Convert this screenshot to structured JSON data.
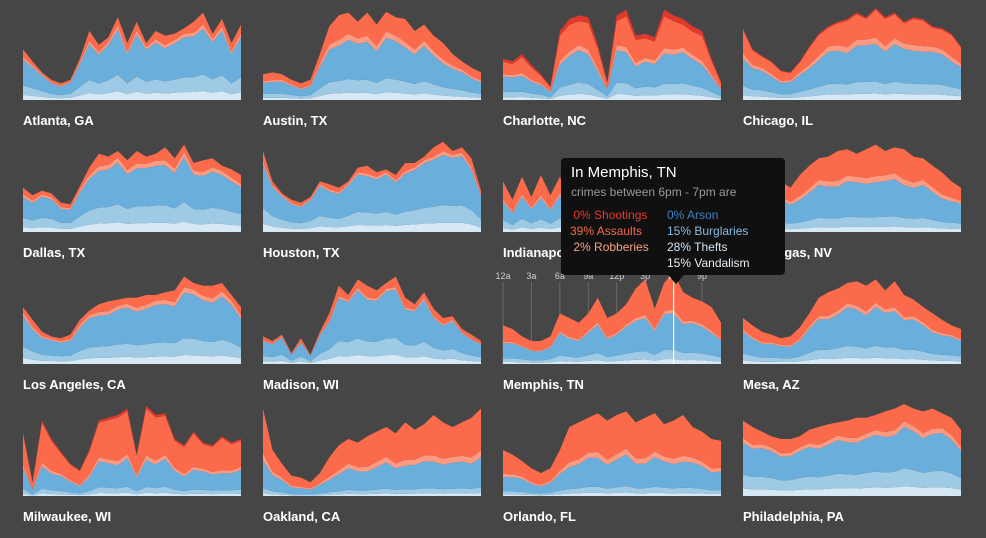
{
  "tooltip": {
    "title": "In Memphis, TN",
    "subtitle": "crimes between 6pm - 7pm are",
    "left_items": [
      {
        "pct": " 0%",
        "label": "Shootings",
        "color": "#e33b2e"
      },
      {
        "pct": "39%",
        "label": "Assaults",
        "color": "#f4694e"
      },
      {
        "pct": " 2%",
        "label": "Robberies",
        "color": "#f8a088"
      }
    ],
    "right_items": [
      {
        "pct": "0%",
        "label": "Arson",
        "color": "#3f82c4"
      },
      {
        "pct": "15%",
        "label": "Burglaries",
        "color": "#86bde2"
      },
      {
        "pct": "28%",
        "label": "Thefts",
        "color": "#cfe4f2"
      },
      {
        "pct": "15%",
        "label": "Vandalism",
        "color": "#e7f0f7"
      }
    ]
  },
  "colors": {
    "background": "#464646",
    "shootings": "#e0382b",
    "assaults": "#fb6a4a",
    "robberies": "#fc9a82",
    "arson": "#4a8cc9",
    "burglaries": "#6aaedb",
    "thefts": "#9fcae6",
    "vandalism": "#d6e8f4"
  },
  "chart_data": {
    "type": "area",
    "layout": "small-multiples",
    "x_unit": "hour of day",
    "x": [
      0,
      1,
      2,
      3,
      4,
      5,
      6,
      7,
      8,
      9,
      10,
      11,
      12,
      13,
      14,
      15,
      16,
      17,
      18,
      19,
      20,
      21,
      22,
      23
    ],
    "series_order": [
      "vandalism",
      "thefts",
      "burglaries",
      "arson",
      "robberies",
      "assaults",
      "shootings"
    ],
    "hour_axis": {
      "city": "Memphis, TN",
      "ticks": [
        {
          "hour": 0,
          "label": "12a"
        },
        {
          "hour": 3,
          "label": "3a"
        },
        {
          "hour": 6,
          "label": "6a"
        },
        {
          "hour": 9,
          "label": "9a"
        },
        {
          "hour": 12,
          "label": "12p"
        },
        {
          "hour": 15,
          "label": "3p"
        },
        {
          "hour": 18,
          "label": "6p"
        },
        {
          "hour": 21,
          "label": "9p"
        }
      ],
      "highlight_hour": 18
    },
    "cities": [
      {
        "name": "Atlanta, GA",
        "totals": [
          0.55,
          0.42,
          0.3,
          0.22,
          0.18,
          0.22,
          0.45,
          0.75,
          0.6,
          0.68,
          0.9,
          0.62,
          0.85,
          0.62,
          0.75,
          0.7,
          0.72,
          0.78,
          0.85,
          0.95,
          0.72,
          0.88,
          0.62,
          0.82
        ],
        "blue": 0.84,
        "light": 0.36,
        "robb": 0.05,
        "shoot": 0.0
      },
      {
        "name": "Austin, TX",
        "totals": [
          0.28,
          0.3,
          0.28,
          0.22,
          0.18,
          0.22,
          0.5,
          0.8,
          0.92,
          0.95,
          0.85,
          0.95,
          0.82,
          0.96,
          0.9,
          0.88,
          0.75,
          0.82,
          0.7,
          0.62,
          0.5,
          0.42,
          0.35,
          0.3
        ],
        "blue": 0.68,
        "light": 0.35,
        "robb": 0.07,
        "shoot": 0.0
      },
      {
        "name": "Charlotte, NC",
        "totals": [
          0.45,
          0.42,
          0.5,
          0.38,
          0.28,
          0.15,
          0.75,
          0.88,
          0.92,
          0.9,
          0.6,
          0.2,
          0.92,
          0.98,
          0.7,
          0.72,
          0.68,
          0.98,
          0.92,
          0.88,
          0.8,
          0.75,
          0.45,
          0.2
        ],
        "blue": 0.55,
        "light": 0.35,
        "robb": 0.06,
        "shoot": 0.07
      },
      {
        "name": "Chicago, IL",
        "totals": [
          0.78,
          0.55,
          0.48,
          0.42,
          0.32,
          0.3,
          0.42,
          0.58,
          0.72,
          0.8,
          0.85,
          0.88,
          0.95,
          0.9,
          1.0,
          0.9,
          0.95,
          0.85,
          0.9,
          0.88,
          0.8,
          0.78,
          0.72,
          0.58
        ],
        "blue": 0.62,
        "light": 0.33,
        "robb": 0.07,
        "shoot": 0.02
      },
      {
        "name": "Dallas, TX",
        "totals": [
          0.48,
          0.4,
          0.45,
          0.42,
          0.32,
          0.3,
          0.5,
          0.7,
          0.85,
          0.82,
          0.88,
          0.78,
          0.88,
          0.82,
          0.85,
          0.92,
          0.8,
          0.95,
          0.75,
          0.78,
          0.8,
          0.72,
          0.68,
          0.62
        ],
        "blue": 0.82,
        "light": 0.4,
        "robb": 0.06,
        "shoot": 0.0
      },
      {
        "name": "Houston, TX",
        "totals": [
          0.88,
          0.55,
          0.42,
          0.35,
          0.32,
          0.38,
          0.55,
          0.52,
          0.48,
          0.55,
          0.7,
          0.72,
          0.65,
          0.68,
          0.62,
          0.75,
          0.75,
          0.82,
          0.92,
          0.98,
          0.88,
          0.92,
          0.8,
          0.45
        ],
        "blue": 0.88,
        "light": 0.35,
        "robb": 0.04,
        "shoot": 0.0
      },
      {
        "name": "Indianapolis, IN",
        "totals": [
          0.55,
          0.35,
          0.6,
          0.38,
          0.62,
          0.4,
          0.6,
          0.38,
          0.62,
          0.4,
          0.58,
          0.45,
          0.7,
          0.48,
          0.62,
          0.5,
          0.65,
          0.55,
          0.62,
          0.58,
          0.52,
          0.48,
          0.42,
          0.38
        ],
        "blue": 0.62,
        "light": 0.38,
        "robb": 0.05,
        "shoot": 0.0
      },
      {
        "name": "Las Vegas, NV",
        "totals": [
          0.52,
          0.5,
          0.55,
          0.62,
          0.55,
          0.48,
          0.62,
          0.72,
          0.8,
          0.82,
          0.88,
          0.9,
          0.85,
          0.9,
          0.95,
          0.88,
          0.92,
          0.9,
          0.82,
          0.8,
          0.72,
          0.65,
          0.55,
          0.48
        ],
        "blue": 0.6,
        "light": 0.3,
        "robb": 0.07,
        "shoot": 0.0
      },
      {
        "name": "Los Angeles, CA",
        "totals": [
          0.62,
          0.48,
          0.35,
          0.3,
          0.28,
          0.32,
          0.48,
          0.58,
          0.65,
          0.68,
          0.7,
          0.72,
          0.72,
          0.75,
          0.75,
          0.78,
          0.8,
          0.95,
          0.88,
          0.85,
          0.85,
          0.88,
          0.75,
          0.62
        ],
        "blue": 0.82,
        "light": 0.36,
        "robb": 0.06,
        "shoot": 0.0
      },
      {
        "name": "Madison, WI",
        "totals": [
          0.3,
          0.25,
          0.32,
          0.12,
          0.28,
          0.1,
          0.35,
          0.55,
          0.85,
          0.75,
          0.92,
          0.85,
          0.8,
          0.88,
          0.95,
          0.72,
          0.65,
          0.78,
          0.6,
          0.5,
          0.52,
          0.38,
          0.32,
          0.25
        ],
        "blue": 0.86,
        "light": 0.35,
        "robb": 0.03,
        "shoot": 0.0
      },
      {
        "name": "Memphis, TN",
        "totals": [
          0.42,
          0.38,
          0.3,
          0.25,
          0.25,
          0.3,
          0.55,
          0.5,
          0.45,
          0.55,
          0.72,
          0.5,
          0.55,
          0.65,
          0.82,
          0.92,
          0.6,
          0.88,
          1.0,
          0.78,
          0.72,
          0.68,
          0.62,
          0.45
        ],
        "blue": 0.58,
        "light": 0.28,
        "robb": 0.04,
        "shoot": 0.0
      },
      {
        "name": "Mesa, AZ",
        "totals": [
          0.5,
          0.42,
          0.35,
          0.32,
          0.28,
          0.3,
          0.4,
          0.55,
          0.72,
          0.78,
          0.82,
          0.88,
          0.9,
          0.85,
          0.92,
          0.8,
          0.9,
          0.75,
          0.7,
          0.62,
          0.55,
          0.48,
          0.42,
          0.38
        ],
        "blue": 0.66,
        "light": 0.32,
        "robb": 0.05,
        "shoot": 0.0
      },
      {
        "name": "Milwaukee, WI",
        "totals": [
          0.7,
          0.15,
          0.82,
          0.62,
          0.48,
          0.35,
          0.28,
          0.5,
          0.82,
          0.85,
          0.88,
          0.95,
          0.45,
          0.98,
          0.88,
          0.9,
          0.62,
          0.55,
          0.7,
          0.58,
          0.55,
          0.65,
          0.58,
          0.62
        ],
        "blue": 0.42,
        "light": 0.25,
        "robb": 0.05,
        "shoot": 0.03
      },
      {
        "name": "Oakland, CA",
        "totals": [
          0.95,
          0.5,
          0.35,
          0.22,
          0.2,
          0.15,
          0.25,
          0.42,
          0.55,
          0.62,
          0.58,
          0.65,
          0.7,
          0.75,
          0.68,
          0.8,
          0.72,
          0.78,
          0.88,
          0.8,
          0.75,
          0.8,
          0.85,
          0.95
        ],
        "blue": 0.45,
        "light": 0.22,
        "robb": 0.08,
        "shoot": 0.0
      },
      {
        "name": "Orlando, FL",
        "totals": [
          0.5,
          0.45,
          0.38,
          0.3,
          0.25,
          0.3,
          0.5,
          0.75,
          0.8,
          0.85,
          0.9,
          0.82,
          0.88,
          0.92,
          0.8,
          0.85,
          0.9,
          0.78,
          0.82,
          0.88,
          0.75,
          0.7,
          0.62,
          0.6
        ],
        "blue": 0.45,
        "light": 0.24,
        "robb": 0.07,
        "shoot": 0.0
      },
      {
        "name": "Philadelphia, PA",
        "totals": [
          0.82,
          0.75,
          0.7,
          0.65,
          0.62,
          0.62,
          0.65,
          0.72,
          0.75,
          0.78,
          0.8,
          0.82,
          0.85,
          0.85,
          0.88,
          0.92,
          0.95,
          1.0,
          0.95,
          0.92,
          0.95,
          0.9,
          0.85,
          0.72
        ],
        "blue": 0.72,
        "light": 0.4,
        "robb": 0.06,
        "shoot": 0.0
      }
    ]
  }
}
